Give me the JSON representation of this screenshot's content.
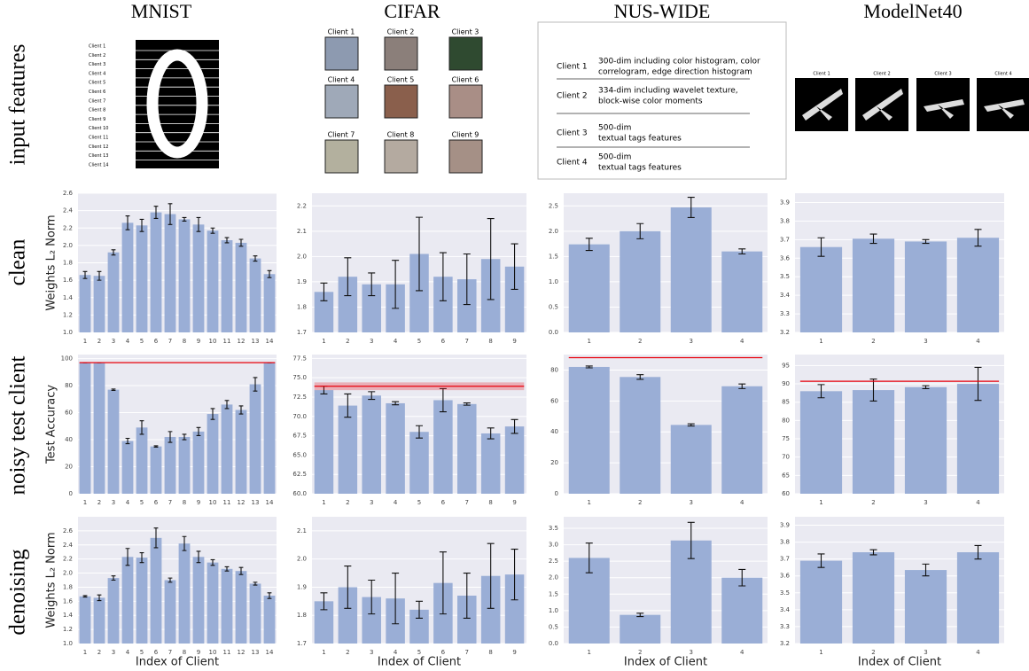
{
  "columns": [
    "MNIST",
    "CIFAR",
    "NUS-WIDE",
    "ModelNet40"
  ],
  "rows": [
    "input features",
    "clean",
    "noisy test client",
    "denoising"
  ],
  "input_features": {
    "mnist_clients": [
      "Client 1",
      "Client 2",
      "Client 3",
      "Client 4",
      "Client 5",
      "Client 6",
      "Client 7",
      "Client 8",
      "Client 9",
      "Client 10",
      "Client 11",
      "Client 12",
      "Client 13",
      "Client 14"
    ],
    "cifar_clients": [
      "Client 1",
      "Client 2",
      "Client 3",
      "Client 4",
      "Client 5",
      "Client 6",
      "Client 7",
      "Client 8",
      "Client 9"
    ],
    "nus_wide": [
      {
        "client": "Client 1",
        "description": [
          "300-dim including color histogram, color",
          "correlogram, edge direction histogram"
        ]
      },
      {
        "client": "Client 2",
        "description": [
          "334-dim including wavelet texture,",
          "block-wise color moments"
        ]
      },
      {
        "client": "Client 3",
        "description": [
          "500-dim",
          "textual tags features"
        ]
      },
      {
        "client": "Client 4",
        "description": [
          "500-dim",
          "textual tags features"
        ]
      }
    ],
    "modelnet_clients": [
      "Client 1",
      "Client 2",
      "Client 3",
      "Client 4"
    ]
  },
  "chart_data": [
    {
      "type": "bar",
      "ylabel": "Weights L₂ Norm",
      "color": "#9aaed6",
      "grid": true,
      "categories": [
        "1",
        "2",
        "3",
        "4",
        "5",
        "6",
        "7",
        "8",
        "9",
        "10",
        "11",
        "12",
        "13",
        "14"
      ],
      "values": [
        1.66,
        1.65,
        1.92,
        2.26,
        2.23,
        2.38,
        2.36,
        2.3,
        2.24,
        2.17,
        2.06,
        2.03,
        1.85,
        1.67
      ],
      "errors": [
        0.04,
        0.05,
        0.03,
        0.08,
        0.07,
        0.07,
        0.12,
        0.02,
        0.08,
        0.03,
        0.03,
        0.04,
        0.03,
        0.04
      ],
      "ylim": [
        1.0,
        2.6
      ],
      "yticks": [
        {
          "value": 1,
          "label": "1.0"
        },
        1.2,
        1.4,
        1.6,
        1.8,
        {
          "value": 2,
          "label": "2.0"
        },
        2.2,
        2.4,
        2.6
      ]
    },
    {
      "type": "bar",
      "color": "#9aaed6",
      "grid": true,
      "categories": [
        "1",
        "2",
        "3",
        "4",
        "5",
        "6",
        "7",
        "8",
        "9"
      ],
      "values": [
        1.86,
        1.92,
        1.89,
        1.89,
        2.01,
        1.92,
        1.91,
        1.99,
        1.96
      ],
      "errors": [
        0.035,
        0.075,
        0.045,
        0.095,
        0.145,
        0.095,
        0.1,
        0.16,
        0.09
      ],
      "ylim": [
        1.7,
        2.25
      ],
      "yticks": [
        1.7,
        1.8,
        1.9,
        {
          "value": 2,
          "label": "2.0"
        },
        2.1,
        2.2
      ]
    },
    {
      "type": "bar",
      "color": "#9aaed6",
      "grid": true,
      "categories": [
        "1",
        "2",
        "3",
        "4"
      ],
      "values": [
        1.74,
        2.0,
        2.47,
        1.6
      ],
      "errors": [
        0.12,
        0.15,
        0.2,
        0.05
      ],
      "ylim": [
        0,
        2.75
      ],
      "yticks": [
        {
          "value": 0,
          "label": "0.0"
        },
        0.5,
        {
          "value": 1,
          "label": "1.0"
        },
        1.5,
        {
          "value": 2,
          "label": "2.0"
        },
        2.5
      ]
    },
    {
      "type": "bar",
      "color": "#9aaed6",
      "grid": true,
      "categories": [
        "1",
        "2",
        "3",
        "4"
      ],
      "values": [
        3.66,
        3.705,
        3.69,
        3.71
      ],
      "errors": [
        0.05,
        0.025,
        0.01,
        0.045
      ],
      "ylim": [
        3.2,
        3.95
      ],
      "yticks": [
        3.2,
        3.3,
        3.4,
        3.5,
        3.6,
        3.7,
        3.8,
        3.9
      ]
    },
    {
      "type": "bar",
      "ylabel": "Test Accuracy",
      "color": "#9aaed6",
      "grid": true,
      "categories": [
        "1",
        "2",
        "3",
        "4",
        "5",
        "6",
        "7",
        "8",
        "9",
        "10",
        "11",
        "12",
        "13",
        "14"
      ],
      "values": [
        97,
        97,
        77,
        39,
        49,
        35,
        42,
        42,
        46,
        59,
        66,
        62,
        81,
        97
      ],
      "errors": [
        0,
        0,
        0.5,
        2,
        5,
        0.5,
        4,
        2,
        3,
        4,
        3,
        3,
        5,
        0
      ],
      "reference": {
        "value": 97,
        "color": "#e8000b"
      },
      "ylim": [
        0,
        103
      ],
      "yticks": [
        0,
        20,
        40,
        60,
        80,
        100
      ]
    },
    {
      "type": "bar",
      "color": "#9aaed6",
      "grid": true,
      "categories": [
        "1",
        "2",
        "3",
        "4",
        "5",
        "6",
        "7",
        "8",
        "9"
      ],
      "values": [
        73.4,
        71.4,
        72.7,
        71.7,
        68.0,
        72.1,
        71.6,
        67.8,
        68.7
      ],
      "errors": [
        0.5,
        1.5,
        0.5,
        0.2,
        0.8,
        1.5,
        0.15,
        0.7,
        0.9
      ],
      "reference": {
        "value": 73.9,
        "error": 0.5,
        "color": "#e8000b"
      },
      "ylim": [
        60,
        78
      ],
      "yticks": [
        {
          "value": 60,
          "label": "60.0"
        },
        62.5,
        {
          "value": 65,
          "label": "65.0"
        },
        67.5,
        {
          "value": 70,
          "label": "70.0"
        },
        72.5,
        {
          "value": 75,
          "label": "75.0"
        },
        77.5
      ]
    },
    {
      "type": "bar",
      "color": "#9aaed6",
      "grid": true,
      "categories": [
        "1",
        "2",
        "3",
        "4"
      ],
      "values": [
        82,
        75.5,
        44.5,
        69.5
      ],
      "errors": [
        0.6,
        1.5,
        0.7,
        1.5
      ],
      "reference": {
        "value": 88,
        "color": "#e8000b"
      },
      "ylim": [
        0,
        90
      ],
      "yticks": [
        0,
        20,
        40,
        60,
        80
      ]
    },
    {
      "type": "bar",
      "color": "#9aaed6",
      "grid": true,
      "categories": [
        "1",
        "2",
        "3",
        "4"
      ],
      "values": [
        88,
        88.3,
        89.1,
        90
      ],
      "errors": [
        1.8,
        3,
        0.4,
        4.5
      ],
      "reference": {
        "value": 90.7,
        "color": "#e8000b"
      },
      "ylim": [
        60,
        98
      ],
      "yticks": [
        60,
        65,
        70,
        75,
        80,
        85,
        90,
        95
      ]
    },
    {
      "type": "bar",
      "ylabel": "Weights L₂ Norm",
      "xlabel": "Index of Client",
      "color": "#9aaed6",
      "grid": true,
      "categories": [
        "1",
        "2",
        "3",
        "4",
        "5",
        "6",
        "7",
        "8",
        "9",
        "10",
        "11",
        "12",
        "13",
        "14"
      ],
      "values": [
        1.67,
        1.65,
        1.93,
        2.23,
        2.22,
        2.5,
        1.9,
        2.42,
        2.23,
        2.15,
        2.06,
        2.03,
        1.85,
        1.68
      ],
      "errors": [
        0.01,
        0.04,
        0.03,
        0.12,
        0.07,
        0.14,
        0.03,
        0.1,
        0.08,
        0.04,
        0.03,
        0.05,
        0.02,
        0.04
      ],
      "ylim": [
        1.0,
        2.8
      ],
      "yticks": [
        {
          "value": 1,
          "label": "1.0"
        },
        1.2,
        1.4,
        1.6,
        1.8,
        {
          "value": 2,
          "label": "2.0"
        },
        2.2,
        2.4,
        2.6
      ]
    },
    {
      "type": "bar",
      "xlabel": "Index of Client",
      "color": "#9aaed6",
      "grid": true,
      "categories": [
        "1",
        "2",
        "3",
        "4",
        "5",
        "6",
        "7",
        "8",
        "9"
      ],
      "values": [
        1.85,
        1.9,
        1.865,
        1.86,
        1.82,
        1.915,
        1.87,
        1.94,
        1.945
      ],
      "errors": [
        0.03,
        0.075,
        0.06,
        0.09,
        0.03,
        0.11,
        0.08,
        0.115,
        0.09
      ],
      "ylim": [
        1.7,
        2.15
      ],
      "yticks": [
        1.7,
        1.8,
        1.9,
        {
          "value": 2,
          "label": "2.0"
        },
        2.1
      ]
    },
    {
      "type": "bar",
      "xlabel": "Index of Client",
      "color": "#9aaed6",
      "grid": true,
      "categories": [
        "1",
        "2",
        "3",
        "4"
      ],
      "values": [
        2.6,
        0.87,
        3.13,
        2.0
      ],
      "errors": [
        0.45,
        0.05,
        0.55,
        0.25
      ],
      "ylim": [
        0,
        3.85
      ],
      "yticks": [
        {
          "value": 0,
          "label": "0.0"
        },
        0.5,
        {
          "value": 1,
          "label": "1.0"
        },
        1.5,
        {
          "value": 2,
          "label": "2.0"
        },
        2.5,
        {
          "value": 3,
          "label": "3.0"
        },
        3.5
      ]
    },
    {
      "type": "bar",
      "xlabel": "Index of Client",
      "color": "#9aaed6",
      "grid": true,
      "categories": [
        "1",
        "2",
        "3",
        "4"
      ],
      "values": [
        3.69,
        3.74,
        3.635,
        3.74
      ],
      "errors": [
        0.04,
        0.015,
        0.035,
        0.04
      ],
      "ylim": [
        3.2,
        3.95
      ],
      "yticks": [
        3.2,
        3.3,
        3.4,
        3.5,
        3.6,
        3.7,
        3.8,
        3.9
      ]
    }
  ]
}
